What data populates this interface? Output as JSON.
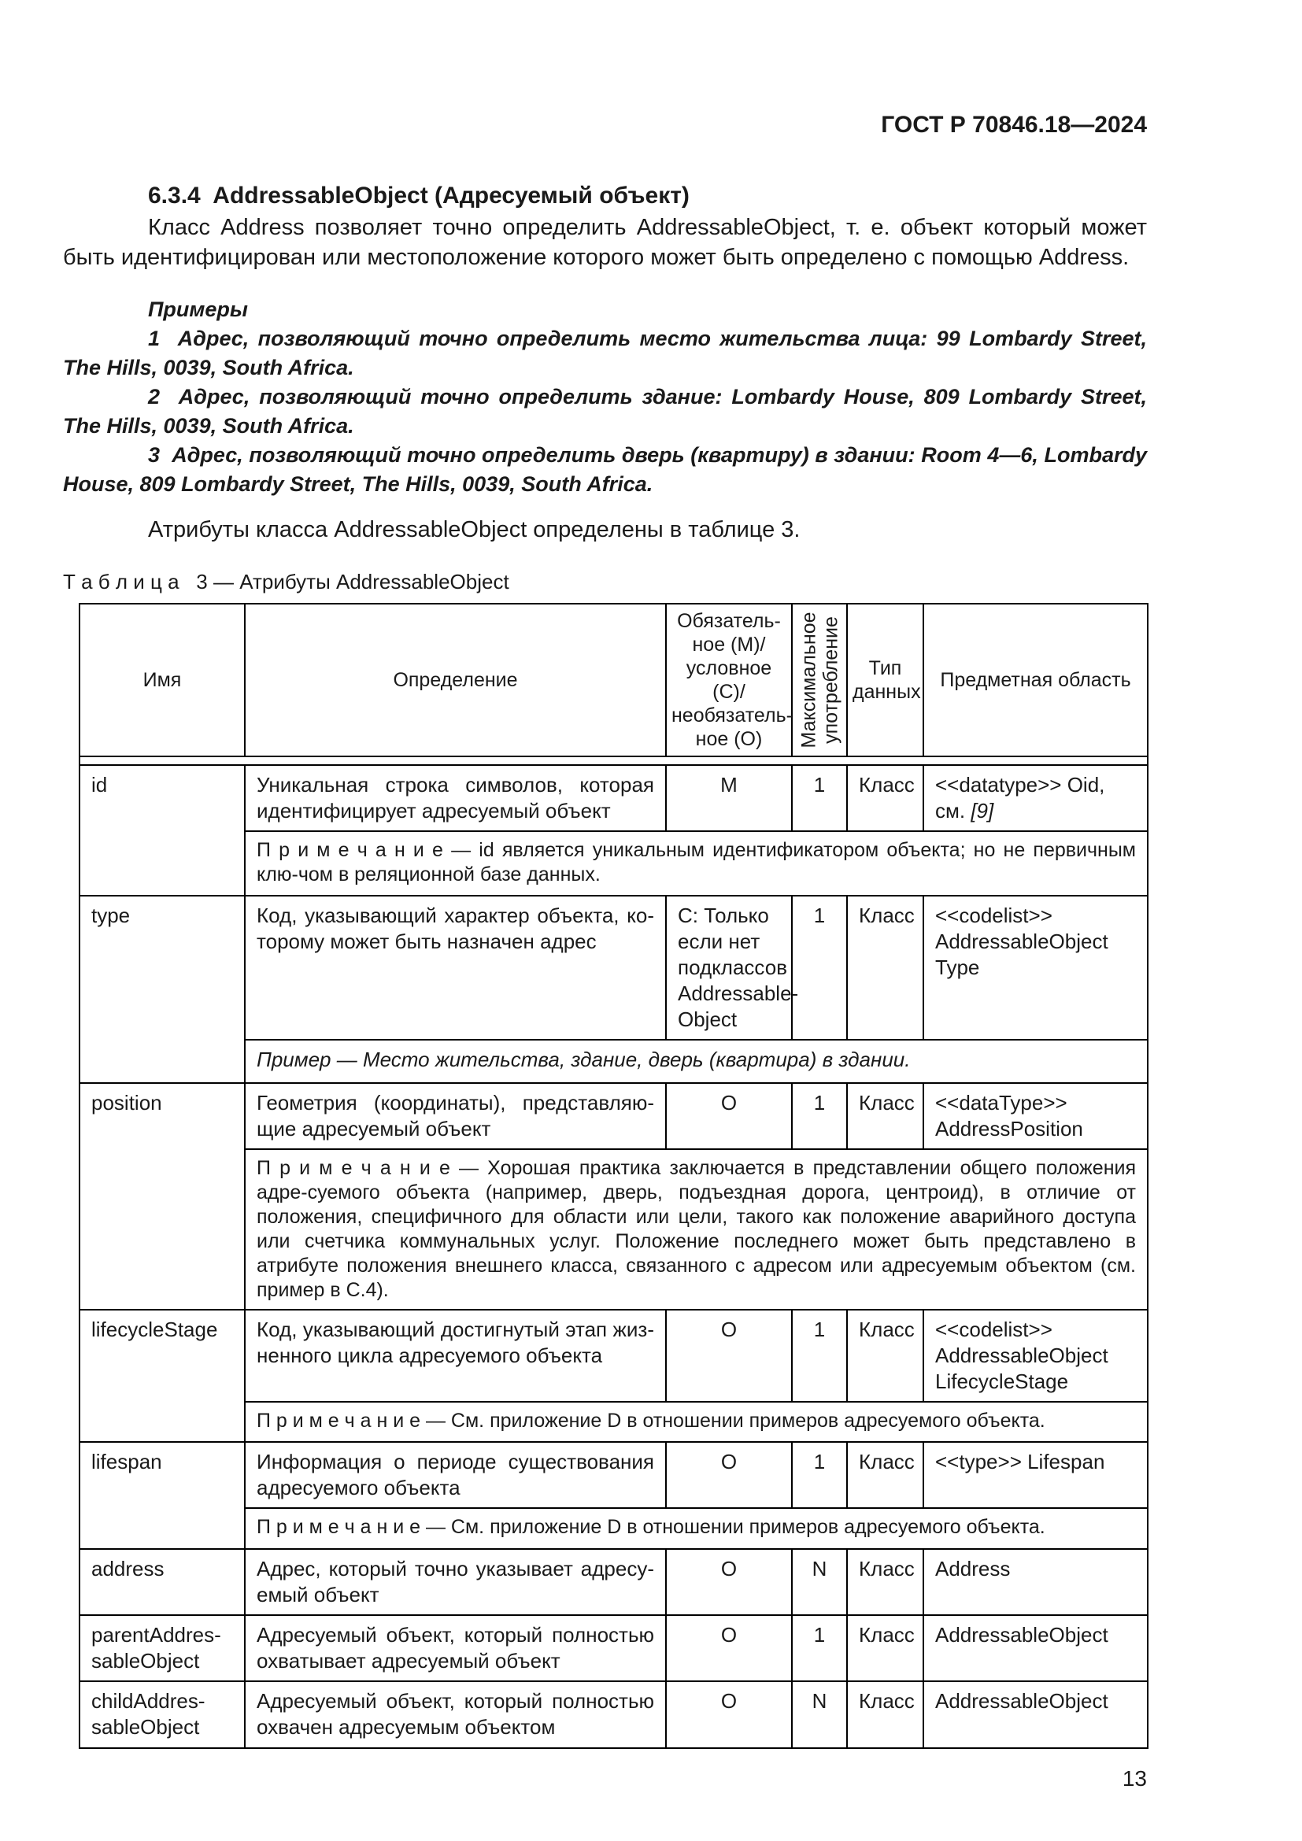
{
  "page": {
    "running_header": "ГОСТ Р 70846.18—2024",
    "page_number": "13"
  },
  "section": {
    "heading": "6.3.4  AddressableObject (Адресуемый объект)",
    "intro": "Класс Address позволяет точно определить AddressableObject, т. е. объект который может быть идентифицирован или местоположение которого может быть определено с помощью Address.",
    "examples_label": "Примеры",
    "examples": [
      "1  Адрес, позволяющий точно определить место жительства лица: 99 Lombardy Street, The Hills, 0039, South Africa.",
      "2  Адрес, позволяющий точно определить здание: Lombardy House, 809 Lombardy Street, The Hills, 0039, South Africa.",
      "3  Адрес, позволяющий точно определить дверь (квартиру) в здании: Room 4—6, Lombardy House, 809 Lombardy Street, The Hills, 0039, South Africa."
    ],
    "table_intro": "Атрибуты класса AddressableObject определены в таблице 3."
  },
  "table": {
    "caption": "Т а б л и ц а   3 — Атрибуты AddressableObject",
    "headers": {
      "name": "Имя",
      "definition": "Определение",
      "requirement": "Обязатель-\nное (M)/\nусловное (C)/\nнеобязатель-\nное (O)",
      "max_usage": "Максимальное\nупотребление",
      "data_type": "Тип данных",
      "domain": "Предметная область"
    },
    "rows": [
      {
        "name": "id",
        "def": "Уникальная строка символов, которая идентифицирует адресуемый объект",
        "req": "M",
        "max": "1",
        "cls": "Класс",
        "domain_runs": [
          {
            "t": "<<datatype>> Oid,\nсм. "
          },
          {
            "t": "[9]",
            "i": true
          }
        ],
        "note": "П р и м е ч а н и е — id является уникальным идентификатором объекта; но не первичным клю-чом в реляционной базе данных."
      },
      {
        "name": "type",
        "def": "Код, указывающий характер объекта, ко-торому может быть назначен адрес",
        "req": "C: Только\nесли нет\nподклассов\nAddressable-\nObject",
        "max": "1",
        "cls": "Класс",
        "domain": "<<codelist>>\nAddressableObject\nType",
        "example": "Пример — Место жительства, здание, дверь (квартира) в здании."
      },
      {
        "name": "position",
        "def": "Геометрия (координаты), представляю-щие адресуемый объект",
        "req": "O",
        "max": "1",
        "cls": "Класс",
        "domain": "<<dataType>>\nAddressPosition",
        "note": "П р и м е ч а н и е — Хорошая практика заключается в представлении общего положения адре-суемого объекта (например, дверь, подъездная дорога, центроид), в отличие от положения, специфичного для области или цели, такого как положение аварийного доступа или счетчика коммунальных услуг. Положение последнего может быть представлено в атрибуте положения внешнего класса, связанного с адресом или адресуемым объектом (см. пример в C.4)."
      },
      {
        "name": "lifecycleStage",
        "def": "Код, указывающий достигнутый этап жиз-ненного цикла адресуемого объекта",
        "req": "O",
        "max": "1",
        "cls": "Класс",
        "domain": "<<codelist>>\nAddressableObject\nLifecycleStage",
        "note": "П р и м е ч а н и е — См. приложение D в отношении примеров адресуемого объекта."
      },
      {
        "name": "lifespan",
        "def": "Информация о периоде существования адресуемого объекта",
        "req": "O",
        "max": "1",
        "cls": "Класс",
        "domain": "<<type>> Lifespan",
        "note": "П р и м е ч а н и е — См. приложение D в отношении примеров адресуемого объекта."
      },
      {
        "name": "address",
        "def": "Адрес, который точно указывает адресу-емый объект",
        "req": "O",
        "max": "N",
        "cls": "Класс",
        "domain": "Address"
      },
      {
        "name": "parentAddres-\nsableObject",
        "def": "Адресуемый объект, который полностью охватывает адресуемый объект",
        "req": "O",
        "max": "1",
        "cls": "Класс",
        "domain": "AddressableObject"
      },
      {
        "name": "childAddres-\nsableObject",
        "def": "Адресуемый объект, который полностью охвачен адресуемым объектом",
        "req": "O",
        "max": "N",
        "cls": "Класс",
        "domain": "AddressableObject"
      }
    ]
  }
}
